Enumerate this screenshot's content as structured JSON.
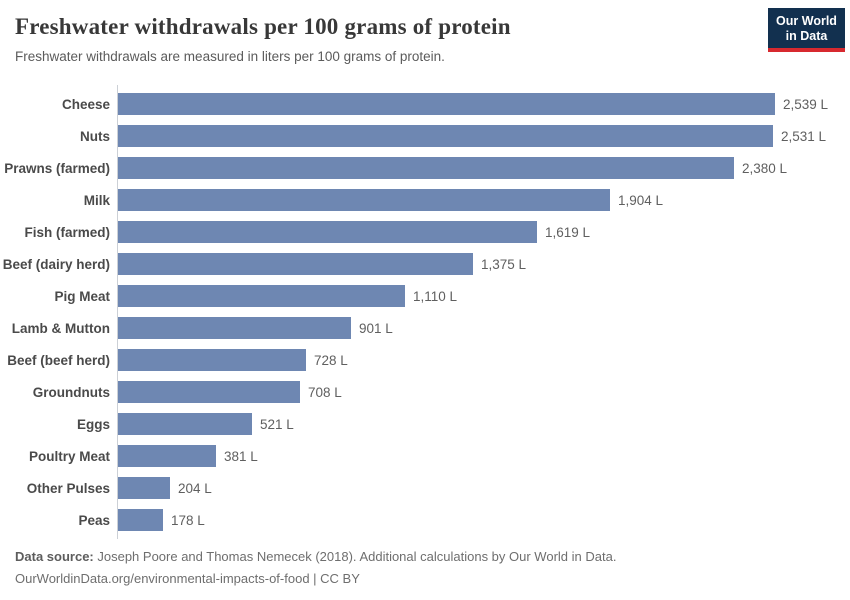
{
  "header": {
    "title": "Freshwater withdrawals per 100 grams of protein",
    "subtitle": "Freshwater withdrawals are measured in liters per 100 grams of protein.",
    "logo": {
      "line1": "Our World",
      "line2": "in Data"
    }
  },
  "chart_data": {
    "type": "bar",
    "orientation": "horizontal",
    "title": "Freshwater withdrawals per 100 grams of protein",
    "xlabel": "",
    "ylabel": "",
    "unit": "liters per 100 grams of protein",
    "xlim": [
      0,
      2539
    ],
    "grid": false,
    "legend": "none",
    "bar_color": "#6e87b2",
    "categories": [
      "Cheese",
      "Nuts",
      "Prawns (farmed)",
      "Milk",
      "Fish (farmed)",
      "Beef (dairy herd)",
      "Pig Meat",
      "Lamb & Mutton",
      "Beef (beef herd)",
      "Groundnuts",
      "Eggs",
      "Poultry Meat",
      "Other Pulses",
      "Peas"
    ],
    "values": [
      2539,
      2531,
      2380,
      1904,
      1619,
      1375,
      1110,
      901,
      728,
      708,
      521,
      381,
      204,
      178
    ],
    "value_labels": [
      "2,539 L",
      "2,531 L",
      "2,380 L",
      "1,904 L",
      "1,619 L",
      "1,375 L",
      "1,110 L",
      "901 L",
      "728 L",
      "708 L",
      "521 L",
      "381 L",
      "204 L",
      "178 L"
    ]
  },
  "footer": {
    "datasource_label": "Data source:",
    "datasource_text": " Joseph Poore and Thomas Nemecek (2018). Additional calculations by Our World in Data.",
    "link_line": "OurWorldinData.org/environmental-impacts-of-food | CC BY"
  },
  "colors": {
    "bar": "#6e87b2",
    "axis": "#ccd0d6",
    "title": "#383838",
    "subtitle": "#5b5b5b",
    "category_label": "#4a4a4a",
    "value_label": "#5f5f5f",
    "footer_text": "#6e6e6e",
    "logo_background": "#12304f",
    "logo_accent": "#d7292f"
  }
}
